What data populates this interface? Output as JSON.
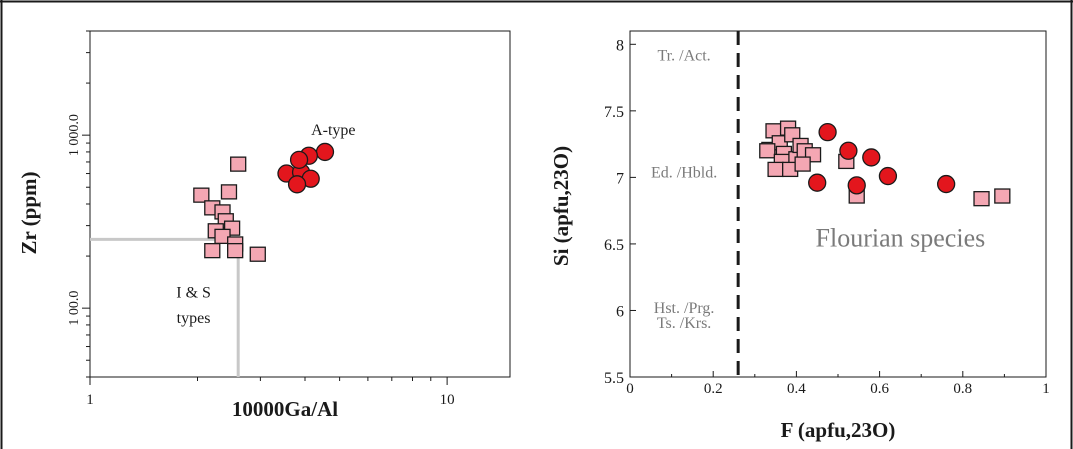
{
  "colors": {
    "square_fill": "#f4a7b3",
    "circle_fill": "#e3161d",
    "marker_stroke": "#1a1a1a",
    "divider_gray": "#c8c8c8",
    "annotation_gray": "#7a7a7a"
  },
  "chart_data": [
    {
      "type": "scatter",
      "xlabel": "10000Ga/Al",
      "ylabel": "Zr (ppm)",
      "x_scale": "log",
      "y_scale": "log",
      "xlim": [
        1,
        15
      ],
      "ylim": [
        40,
        4000
      ],
      "x_ticks": [
        1,
        10
      ],
      "x_tick_labels": [
        "1",
        "10"
      ],
      "y_ticks": [
        100,
        1000
      ],
      "y_tick_labels": [
        "1 00.0",
        "1 000.0"
      ],
      "grid": false,
      "annotations": [
        {
          "text": "A-type",
          "x": 4.8,
          "y": 1000
        },
        {
          "text": "I & S",
          "x": 1.95,
          "y": 115
        },
        {
          "text": "types",
          "x": 1.95,
          "y": 82
        }
      ],
      "boundary": {
        "x": 2.6,
        "y": 250
      },
      "series": [
        {
          "marker": "square",
          "x": [
            2.05,
            2.45,
            2.6,
            2.2,
            2.35,
            2.4,
            2.25,
            2.5,
            2.35,
            2.55,
            2.55,
            2.2,
            2.95
          ],
          "y": [
            450,
            470,
            680,
            380,
            360,
            320,
            280,
            290,
            260,
            235,
            215,
            215,
            205
          ]
        },
        {
          "marker": "circle",
          "x": [
            3.55,
            3.9,
            4.55,
            4.1,
            3.85,
            4.15,
            3.8
          ],
          "y": [
            600,
            610,
            800,
            760,
            720,
            560,
            520
          ]
        }
      ]
    },
    {
      "type": "scatter",
      "xlabel": "F (apfu,23O)",
      "ylabel": "Si (apfu,23O)",
      "xlim": [
        0,
        1
      ],
      "ylim": [
        5.5,
        8.1
      ],
      "x_ticks": [
        0,
        0.2,
        0.4,
        0.6,
        0.8,
        1
      ],
      "x_tick_labels": [
        "0",
        "0.2",
        "0.4",
        "0.6",
        "0.8",
        "1"
      ],
      "y_ticks": [
        5.5,
        6,
        6.5,
        7,
        7.5,
        8
      ],
      "y_tick_labels": [
        "5.5",
        "6",
        "6.5",
        "7",
        "7.5",
        "8"
      ],
      "grid": false,
      "divider_x": 0.26,
      "annotations": [
        {
          "text": "Tr. /Act.",
          "x": 0.13,
          "y": 7.88
        },
        {
          "text": "Ed. /Hbld.",
          "x": 0.13,
          "y": 7.0
        },
        {
          "text": "Hst. /Prg.",
          "x": 0.13,
          "y": 5.98
        },
        {
          "text": "Ts. /Krs.",
          "x": 0.13,
          "y": 5.87
        },
        {
          "text": "Flourian species",
          "x": 0.65,
          "y": 6.48
        }
      ],
      "series": [
        {
          "marker": "square",
          "x": [
            0.345,
            0.38,
            0.335,
            0.36,
            0.39,
            0.33,
            0.37,
            0.365,
            0.4,
            0.41,
            0.42,
            0.44,
            0.35,
            0.385,
            0.415,
            0.52,
            0.545,
            0.845,
            0.895
          ],
          "y": [
            7.35,
            7.37,
            7.21,
            7.26,
            7.32,
            7.2,
            7.18,
            7.12,
            7.14,
            7.24,
            7.2,
            7.17,
            7.06,
            7.06,
            7.1,
            7.12,
            6.86,
            6.84,
            6.86
          ]
        },
        {
          "marker": "circle",
          "x": [
            0.475,
            0.525,
            0.58,
            0.45,
            0.545,
            0.62,
            0.76
          ],
          "y": [
            7.34,
            7.2,
            7.15,
            6.96,
            6.94,
            7.01,
            6.95
          ]
        }
      ]
    }
  ]
}
